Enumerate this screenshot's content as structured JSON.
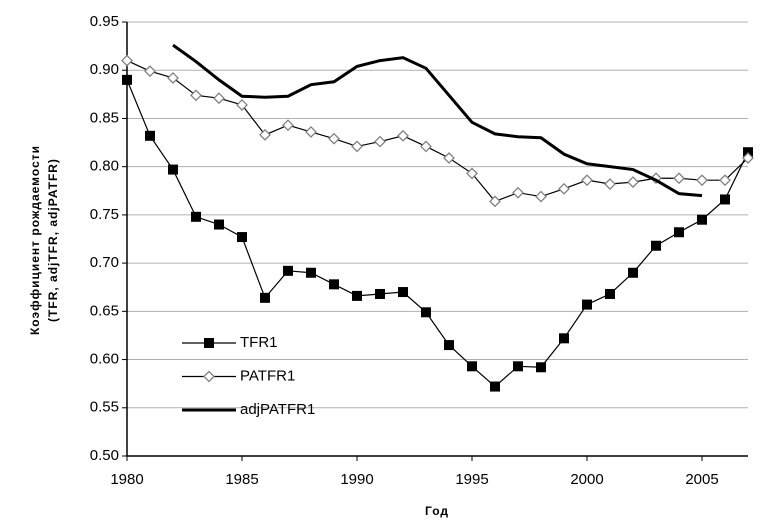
{
  "chart_data": {
    "type": "line",
    "xlabel": "Год",
    "ylabel": [
      "Коэффициент рождаемости",
      "(TFR, adjTFR, adjPATFR)"
    ],
    "x": [
      1980,
      1981,
      1982,
      1983,
      1984,
      1985,
      1986,
      1987,
      1988,
      1989,
      1990,
      1991,
      1992,
      1993,
      1994,
      1995,
      1996,
      1997,
      1998,
      1999,
      2000,
      2001,
      2002,
      2003,
      2004,
      2005,
      2006,
      2007
    ],
    "series": [
      {
        "name": "TFR1",
        "color": "#000000",
        "marker": "square",
        "values": [
          0.89,
          0.832,
          0.797,
          0.748,
          0.74,
          0.727,
          0.664,
          0.692,
          0.69,
          0.678,
          0.666,
          0.668,
          0.67,
          0.649,
          0.615,
          0.593,
          0.572,
          0.593,
          0.592,
          0.622,
          0.657,
          0.668,
          0.69,
          0.718,
          0.732,
          0.745,
          0.766,
          0.815
        ]
      },
      {
        "name": "PATFR1",
        "color": "#808080",
        "marker": "diamond",
        "values": [
          0.91,
          0.899,
          0.892,
          0.874,
          0.871,
          0.864,
          0.833,
          0.843,
          0.836,
          0.829,
          0.821,
          0.826,
          0.832,
          0.821,
          0.809,
          0.793,
          0.764,
          0.773,
          0.769,
          0.777,
          0.786,
          0.782,
          0.784,
          0.788,
          0.788,
          0.786,
          0.786,
          0.809
        ]
      },
      {
        "name": "adjPATFR1",
        "color": "#000000",
        "marker": null,
        "values": [
          null,
          null,
          0.926,
          0.909,
          0.89,
          0.873,
          0.872,
          0.873,
          0.885,
          0.888,
          0.904,
          0.91,
          0.913,
          0.902,
          0.874,
          0.846,
          0.834,
          0.831,
          0.83,
          0.813,
          0.803,
          0.8,
          0.797,
          0.786,
          0.772,
          0.77,
          null,
          null
        ]
      }
    ],
    "xlim": [
      1980,
      2007
    ],
    "xticks": [
      1980,
      1985,
      1990,
      1995,
      2000,
      2005
    ],
    "ylim": [
      0.5,
      0.95
    ],
    "yticks": [
      {
        "value": 0.5,
        "label": "0.50"
      },
      0.55,
      {
        "value": 0.6,
        "label": "0.60"
      },
      0.65,
      {
        "value": 0.7,
        "label": "0.70"
      },
      0.75,
      {
        "value": 0.8,
        "label": "0.80"
      },
      0.85,
      {
        "value": 0.9,
        "label": "0.90"
      },
      0.95
    ],
    "grid": true,
    "legend": "left"
  }
}
